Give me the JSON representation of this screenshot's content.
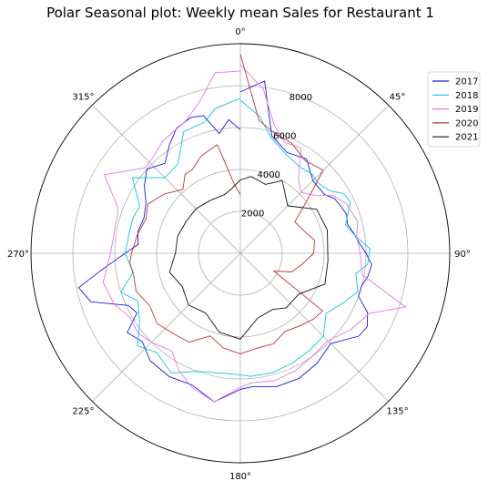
{
  "chart_data": {
    "type": "line",
    "projection": "polar",
    "title": "Polar Seasonal plot: Weekly mean Sales for Restaurant 1",
    "theta_direction": "clockwise",
    "theta_zero": "top",
    "angle_tick_labels": [
      "0°",
      "45°",
      "90°",
      "135°",
      "180°",
      "225°",
      "270°",
      "315°"
    ],
    "r_tick_labels": [
      "2000",
      "4000",
      "6000",
      "8000"
    ],
    "r_ticks": [
      2000,
      4000,
      6000,
      8000
    ],
    "r_range": [
      0,
      10000
    ],
    "grid": true,
    "legend_position": "top-right",
    "x_unit": "degrees",
    "series": [
      {
        "name": "2017",
        "color": "#1a1ad6",
        "points": [
          [
            0,
            7700
          ],
          [
            8,
            8300
          ],
          [
            15,
            5800
          ],
          [
            25,
            5300
          ],
          [
            35,
            5500
          ],
          [
            45,
            4900
          ],
          [
            55,
            4900
          ],
          [
            60,
            5200
          ],
          [
            65,
            5300
          ],
          [
            70,
            5400
          ],
          [
            75,
            5300
          ],
          [
            80,
            5500
          ],
          [
            85,
            5700
          ],
          [
            90,
            6000
          ],
          [
            95,
            6300
          ],
          [
            100,
            6200
          ],
          [
            105,
            6000
          ],
          [
            110,
            6000
          ],
          [
            115,
            6700
          ],
          [
            120,
            7000
          ],
          [
            125,
            6900
          ],
          [
            135,
            6100
          ],
          [
            145,
            6400
          ],
          [
            155,
            6600
          ],
          [
            165,
            6600
          ],
          [
            175,
            6400
          ],
          [
            180,
            6500
          ],
          [
            190,
            7200
          ],
          [
            200,
            6700
          ],
          [
            210,
            6800
          ],
          [
            220,
            6700
          ],
          [
            228,
            6300
          ],
          [
            235,
            6600
          ],
          [
            240,
            5700
          ],
          [
            245,
            5900
          ],
          [
            252,
            7500
          ],
          [
            258,
            7900
          ],
          [
            263,
            6700
          ],
          [
            270,
            5500
          ],
          [
            275,
            4900
          ],
          [
            282,
            5000
          ],
          [
            290,
            4900
          ],
          [
            298,
            5100
          ],
          [
            305,
            5600
          ],
          [
            312,
            6000
          ],
          [
            320,
            5600
          ],
          [
            327,
            6200
          ],
          [
            333,
            6700
          ],
          [
            340,
            6900
          ],
          [
            345,
            6800
          ],
          [
            350,
            5800
          ],
          [
            355,
            6400
          ],
          [
            360,
            5900
          ]
        ]
      },
      {
        "name": "2018",
        "color": "#18c4d2",
        "points": [
          [
            0,
            7300
          ],
          [
            8,
            6600
          ],
          [
            15,
            5700
          ],
          [
            25,
            5200
          ],
          [
            35,
            5000
          ],
          [
            42,
            5100
          ],
          [
            48,
            5000
          ],
          [
            55,
            5200
          ],
          [
            60,
            5700
          ],
          [
            65,
            5800
          ],
          [
            75,
            5200
          ],
          [
            82,
            5600
          ],
          [
            88,
            6200
          ],
          [
            95,
            6100
          ],
          [
            100,
            5600
          ],
          [
            108,
            5900
          ],
          [
            115,
            5500
          ],
          [
            125,
            5000
          ],
          [
            135,
            5600
          ],
          [
            145,
            5700
          ],
          [
            155,
            5800
          ],
          [
            165,
            5900
          ],
          [
            175,
            5900
          ],
          [
            180,
            5800
          ],
          [
            190,
            5800
          ],
          [
            200,
            6000
          ],
          [
            210,
            6600
          ],
          [
            220,
            6200
          ],
          [
            228,
            6600
          ],
          [
            236,
            5800
          ],
          [
            245,
            5400
          ],
          [
            252,
            6000
          ],
          [
            260,
            5200
          ],
          [
            270,
            5500
          ],
          [
            280,
            5400
          ],
          [
            288,
            5400
          ],
          [
            295,
            5300
          ],
          [
            305,
            6300
          ],
          [
            315,
            5100
          ],
          [
            325,
            5200
          ],
          [
            335,
            6400
          ],
          [
            345,
            6500
          ],
          [
            350,
            7000
          ],
          [
            360,
            7400
          ]
        ]
      },
      {
        "name": "2019",
        "color": "#e07be0",
        "points": [
          [
            0,
            9000
          ],
          [
            8,
            7900
          ],
          [
            15,
            6300
          ],
          [
            22,
            5700
          ],
          [
            30,
            5800
          ],
          [
            38,
            4500
          ],
          [
            45,
            4100
          ],
          [
            52,
            4500
          ],
          [
            58,
            5200
          ],
          [
            65,
            5600
          ],
          [
            75,
            5800
          ],
          [
            82,
            5600
          ],
          [
            88,
            5700
          ],
          [
            95,
            5800
          ],
          [
            100,
            5900
          ],
          [
            108,
            8300
          ],
          [
            115,
            6800
          ],
          [
            125,
            6400
          ],
          [
            135,
            5900
          ],
          [
            145,
            6000
          ],
          [
            155,
            6200
          ],
          [
            165,
            6300
          ],
          [
            175,
            6200
          ],
          [
            180,
            6400
          ],
          [
            190,
            7200
          ],
          [
            200,
            6800
          ],
          [
            208,
            6300
          ],
          [
            215,
            5700
          ],
          [
            225,
            6000
          ],
          [
            232,
            6200
          ],
          [
            240,
            6100
          ],
          [
            248,
            6500
          ],
          [
            258,
            6700
          ],
          [
            270,
            6200
          ],
          [
            280,
            6100
          ],
          [
            290,
            6200
          ],
          [
            300,
            7500
          ],
          [
            305,
            6800
          ],
          [
            312,
            6100
          ],
          [
            318,
            6200
          ],
          [
            325,
            6500
          ],
          [
            330,
            6600
          ],
          [
            337,
            6800
          ],
          [
            345,
            7500
          ],
          [
            352,
            8700
          ],
          [
            360,
            8700
          ]
        ]
      },
      {
        "name": "2020",
        "color": "#b23a3a",
        "points": [
          [
            0,
            9500
          ],
          [
            8,
            6400
          ],
          [
            15,
            6000
          ],
          [
            25,
            5800
          ],
          [
            35,
            5400
          ],
          [
            45,
            5600
          ],
          [
            52,
            4000
          ],
          [
            60,
            3000
          ],
          [
            70,
            3200
          ],
          [
            80,
            3600
          ],
          [
            90,
            3500
          ],
          [
            100,
            3000
          ],
          [
            110,
            2600
          ],
          [
            118,
            1800
          ],
          [
            125,
            4800
          ],
          [
            132,
            4700
          ],
          [
            140,
            4500
          ],
          [
            150,
            4300
          ],
          [
            160,
            4600
          ],
          [
            170,
            4600
          ],
          [
            180,
            4800
          ],
          [
            190,
            4600
          ],
          [
            200,
            4200
          ],
          [
            210,
            4900
          ],
          [
            220,
            5000
          ],
          [
            230,
            5200
          ],
          [
            240,
            5000
          ],
          [
            250,
            5300
          ],
          [
            258,
            5200
          ],
          [
            265,
            5300
          ],
          [
            270,
            5200
          ],
          [
            280,
            5000
          ],
          [
            290,
            4800
          ],
          [
            298,
            5000
          ],
          [
            308,
            4600
          ],
          [
            318,
            4100
          ],
          [
            325,
            4600
          ],
          [
            330,
            4600
          ],
          [
            338,
            5000
          ],
          [
            348,
            5300
          ],
          [
            355,
            3300
          ],
          [
            360,
            2800
          ]
        ]
      },
      {
        "name": "2021",
        "color": "#111111",
        "points": [
          [
            0,
            3500
          ],
          [
            8,
            3700
          ],
          [
            20,
            3500
          ],
          [
            30,
            4000
          ],
          [
            45,
            3200
          ],
          [
            60,
            4200
          ],
          [
            75,
            4300
          ],
          [
            95,
            4200
          ],
          [
            110,
            4300
          ],
          [
            125,
            3400
          ],
          [
            140,
            3400
          ],
          [
            150,
            3100
          ],
          [
            165,
            3200
          ],
          [
            180,
            4100
          ],
          [
            195,
            3900
          ],
          [
            210,
            3300
          ],
          [
            225,
            3500
          ],
          [
            240,
            3200
          ],
          [
            255,
            3500
          ],
          [
            270,
            3100
          ],
          [
            285,
            3100
          ],
          [
            300,
            3000
          ],
          [
            315,
            3000
          ],
          [
            330,
            2900
          ],
          [
            345,
            2900
          ],
          [
            352,
            3100
          ],
          [
            360,
            3500
          ]
        ]
      }
    ]
  }
}
